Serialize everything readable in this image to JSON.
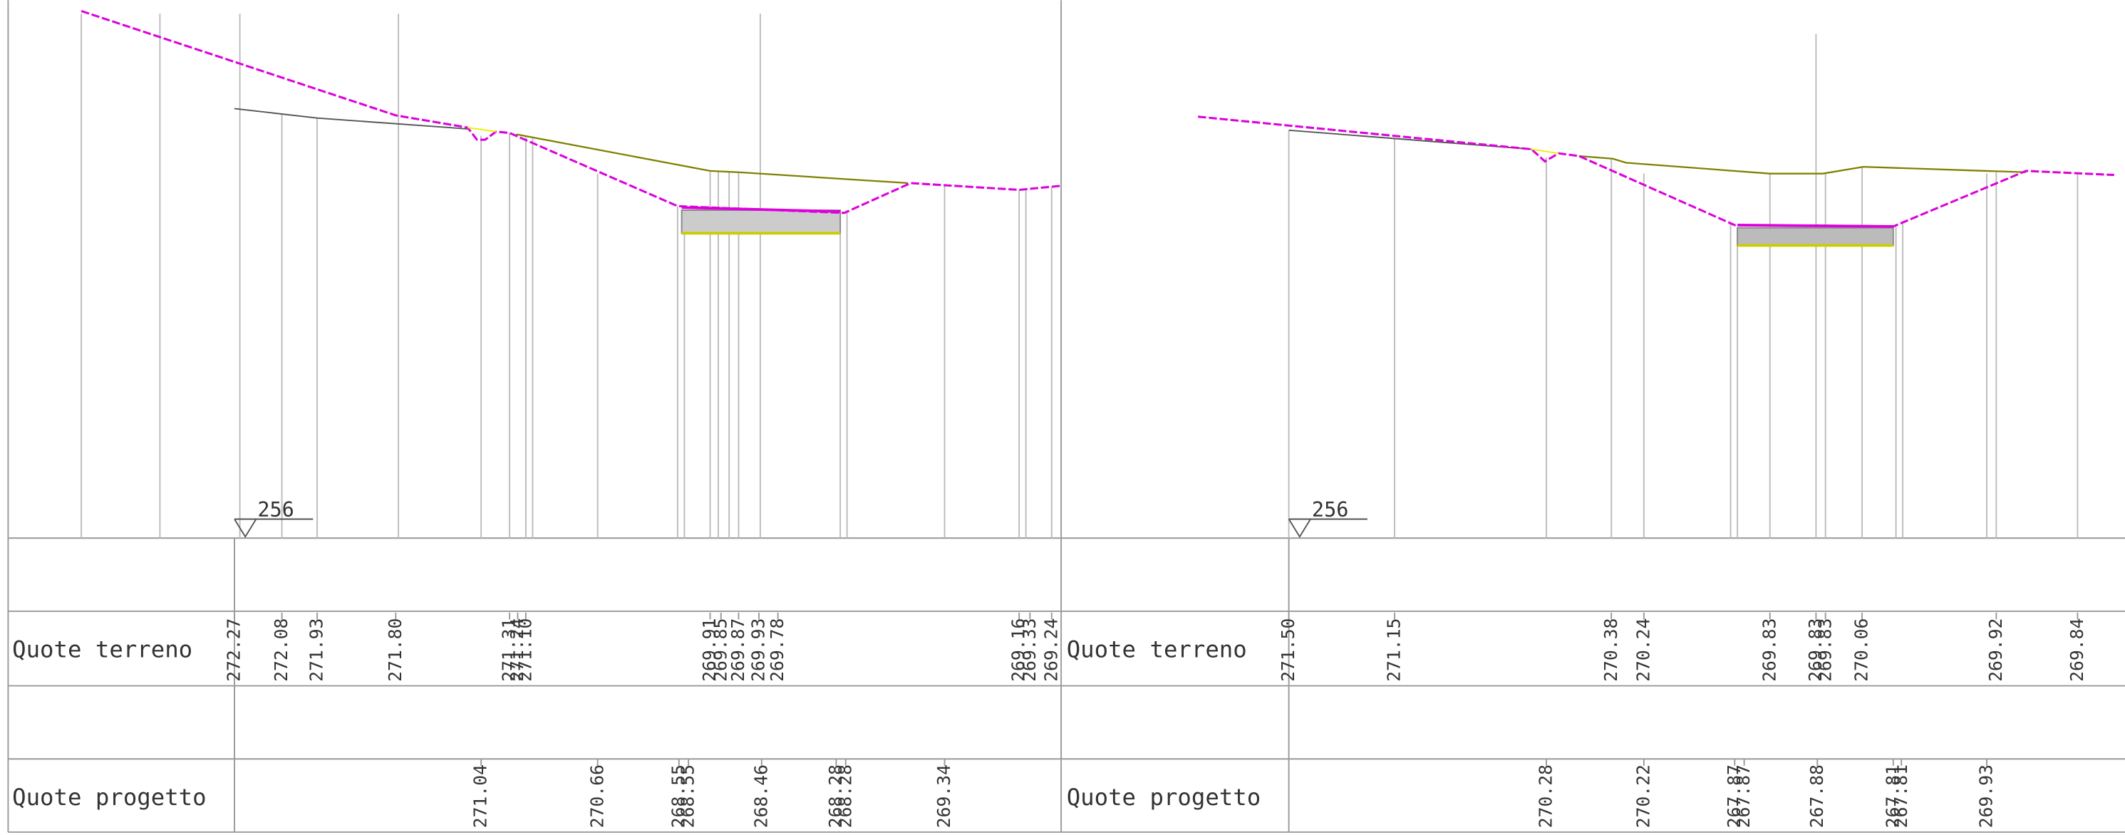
{
  "sections": [
    {
      "datum": "256",
      "terrain_label": "Quote terreno",
      "design_label": "Quote progetto",
      "terrain": [
        "272.27",
        "272.08",
        "271.93",
        "271.80",
        "271.31",
        "271.24",
        "271.10",
        "269.91",
        "269.85",
        "269.87",
        "269.93",
        "269.78",
        "269.16",
        "269.33",
        "269.24"
      ],
      "design": [
        "271.04",
        "270.66",
        "268.55",
        "268.55",
        "268.46",
        "268.28",
        "268.28",
        "269.34"
      ]
    },
    {
      "datum": "256",
      "terrain_label": "Quote terreno",
      "design_label": "Quote progetto",
      "terrain": [
        "271.50",
        "271.15",
        "270.38",
        "270.24",
        "269.83",
        "269.83",
        "269.83",
        "270.06",
        "269.92",
        "269.84"
      ],
      "design": [
        "270.28",
        "270.22",
        "267.87",
        "267.87",
        "267.88",
        "267.81",
        "267.81",
        "269.93"
      ]
    }
  ]
}
